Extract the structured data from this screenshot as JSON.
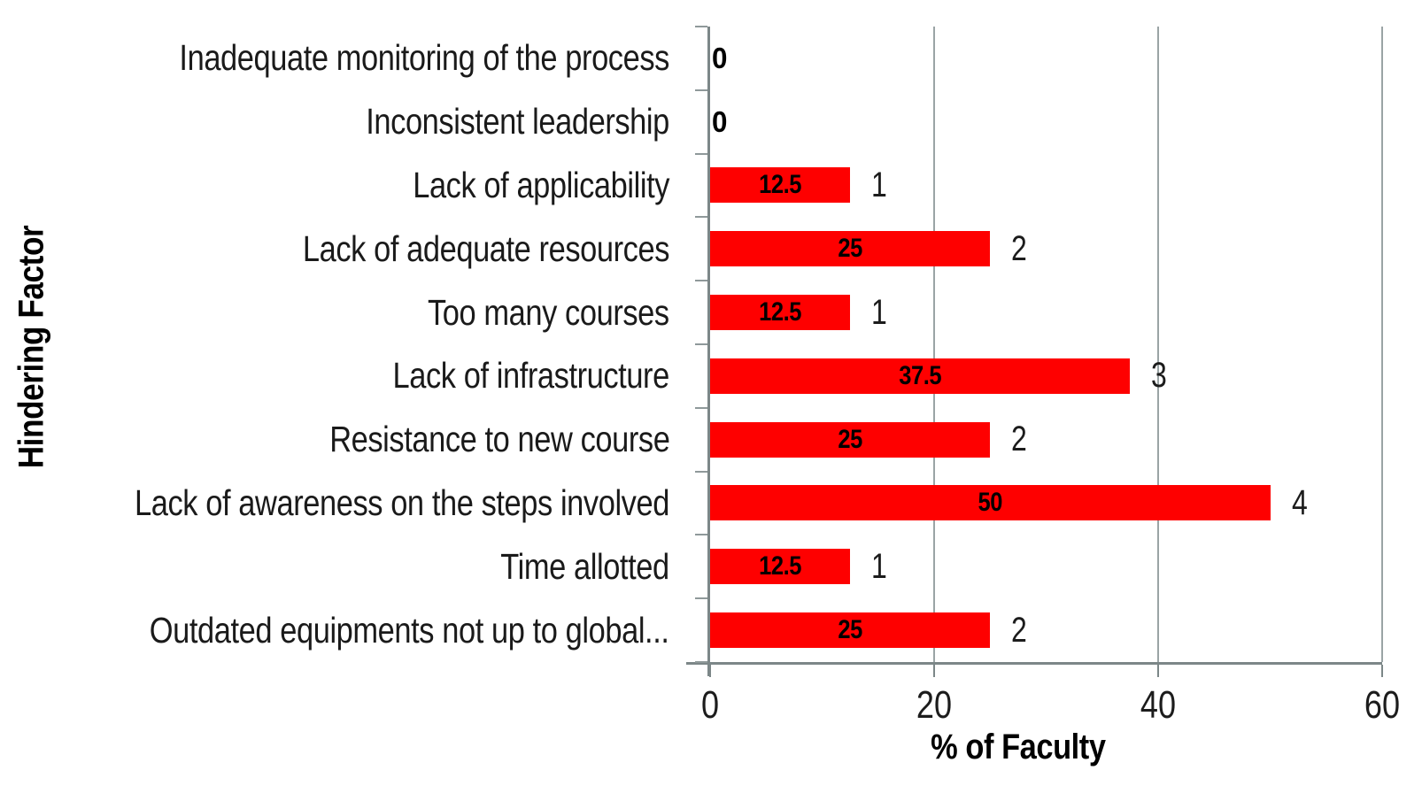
{
  "chart_data": {
    "type": "bar",
    "orientation": "horizontal",
    "title": "",
    "xlabel": "% of Faculty",
    "ylabel": "Hindering Factor",
    "xlim": [
      0,
      60
    ],
    "xticks": [
      0,
      20,
      40,
      60
    ],
    "grid": "vertical gridlines at 20, 40, 60",
    "legend": "none",
    "colors": {
      "bar": "#fe0000",
      "gridline": "#9aa4a5",
      "axis": "#7c8788",
      "text": "#000000"
    },
    "rows": [
      {
        "label": "Inadequate monitoring of the process",
        "value": 0,
        "value_label": "0",
        "count_label": ""
      },
      {
        "label": "Inconsistent leadership",
        "value": 0,
        "value_label": "0",
        "count_label": ""
      },
      {
        "label": "Lack of applicability",
        "value": 12.5,
        "value_label": "12.5",
        "count_label": "1"
      },
      {
        "label": "Lack of adequate resources",
        "value": 25,
        "value_label": "25",
        "count_label": "2"
      },
      {
        "label": "Too many courses",
        "value": 12.5,
        "value_label": "12.5",
        "count_label": "1"
      },
      {
        "label": "Lack of infrastructure",
        "value": 37.5,
        "value_label": "37.5",
        "count_label": "3"
      },
      {
        "label": "Resistance to new course",
        "value": 25,
        "value_label": "25",
        "count_label": "2"
      },
      {
        "label": "Lack of awareness on the steps involved",
        "value": 50,
        "value_label": "50",
        "count_label": "4"
      },
      {
        "label": "Time allotted",
        "value": 12.5,
        "value_label": "12.5",
        "count_label": "1"
      },
      {
        "label": "Outdated equipments not up to global...",
        "value": 25,
        "value_label": "25",
        "count_label": "2"
      }
    ]
  }
}
